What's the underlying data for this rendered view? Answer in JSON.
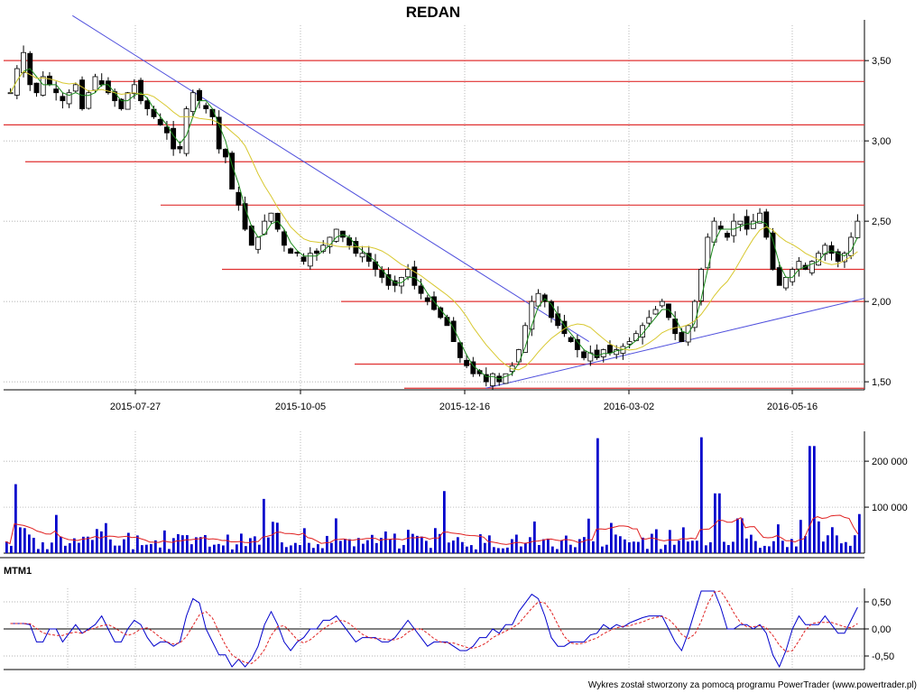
{
  "title": "REDAN",
  "footer": "Wykres został stworzony za pomocą programu PowerTrader (www.powertrader.pl)",
  "chart_data": [
    {
      "type": "candlestick",
      "panel": "price",
      "title": "REDAN",
      "x_tick_labels": [
        "2015-07-27",
        "2015-10-05",
        "2015-12-16",
        "2016-03-02",
        "2016-05-16"
      ],
      "y_tick_labels": [
        "3,50",
        "3,00",
        "2,50",
        "2,00",
        "1,50"
      ],
      "y_ticks": [
        3.5,
        3.0,
        2.5,
        2.0,
        1.5
      ],
      "ylim": [
        1.45,
        3.72
      ],
      "grid": true,
      "close_series": [
        3.3,
        3.45,
        3.55,
        3.35,
        3.3,
        3.4,
        3.35,
        3.3,
        3.25,
        3.3,
        3.35,
        3.2,
        3.3,
        3.4,
        3.35,
        3.3,
        3.25,
        3.2,
        3.3,
        3.35,
        3.25,
        3.2,
        3.15,
        3.1,
        3.05,
        2.95,
        2.95,
        3.2,
        3.3,
        3.25,
        3.2,
        3.15,
        2.95,
        2.9,
        2.7,
        2.6,
        2.45,
        2.35,
        2.4,
        2.5,
        2.55,
        2.45,
        2.35,
        2.3,
        2.3,
        2.25,
        2.3,
        2.3,
        2.35,
        2.4,
        2.45,
        2.4,
        2.35,
        2.3,
        2.3,
        2.25,
        2.2,
        2.15,
        2.1,
        2.1,
        2.15,
        2.2,
        2.1,
        2.05,
        2.0,
        1.95,
        1.9,
        1.85,
        1.75,
        1.65,
        1.6,
        1.55,
        1.55,
        1.5,
        1.55,
        1.5,
        1.55,
        1.6,
        1.7,
        1.85,
        2.0,
        2.05,
        2.0,
        1.9,
        1.85,
        1.8,
        1.75,
        1.7,
        1.65,
        1.68,
        1.65,
        1.7,
        1.68,
        1.7,
        1.72,
        1.75,
        1.8,
        1.85,
        1.9,
        1.95,
        2.0,
        1.9,
        1.8,
        1.75,
        1.85,
        2.0,
        2.2,
        2.4,
        2.5,
        2.45,
        2.4,
        2.5,
        2.5,
        2.45,
        2.5,
        2.55,
        2.4,
        2.2,
        2.1,
        2.15,
        2.2,
        2.25,
        2.2,
        2.25,
        2.3,
        2.35,
        2.3,
        2.25,
        2.3,
        2.4,
        2.5
      ],
      "moving_averages": [
        {
          "color": "#1a8a1a",
          "period": "short"
        },
        {
          "color": "#d8c830",
          "period": "long"
        }
      ],
      "horizontal_levels": [
        3.5,
        3.37,
        3.1,
        2.87,
        2.6,
        2.2,
        2.0,
        1.61,
        1.46
      ],
      "trend_lines": [
        {
          "from": [
            0.08,
            3.78
          ],
          "to": [
            0.68,
            1.75
          ]
        },
        {
          "from": [
            0.56,
            1.46
          ],
          "to": [
            1.0,
            2.02
          ]
        }
      ],
      "candle_colors": {
        "up": "#ffffff",
        "down": "#000000",
        "outline": "#000000"
      },
      "level_color": "#e03030",
      "trend_color": "#5050dd"
    },
    {
      "type": "bar",
      "panel": "volume",
      "y_tick_labels": [
        "200 000",
        "100 000"
      ],
      "y_ticks": [
        200000,
        100000
      ],
      "ylim": [
        0,
        265000
      ],
      "bar_color": "#0000cc",
      "average_color": "#e02020",
      "spikes": [
        {
          "x": 0.01,
          "value": 150000
        },
        {
          "x": 0.3,
          "value": 118000
        },
        {
          "x": 0.51,
          "value": 135000
        },
        {
          "x": 0.69,
          "value": 250000
        },
        {
          "x": 0.81,
          "value": 252000
        },
        {
          "x": 0.83,
          "value": 130000
        },
        {
          "x": 0.94,
          "value": 233000
        },
        {
          "x": 0.995,
          "value": 85000
        }
      ]
    },
    {
      "type": "line",
      "panel": "oscillator",
      "title": "MTM1",
      "y_tick_labels": [
        "0,50",
        "0,00",
        "-0,50"
      ],
      "y_ticks": [
        0.5,
        0.0,
        -0.5
      ],
      "ylim": [
        -0.75,
        0.75
      ],
      "series": [
        {
          "name": "",
          "color": "#0000cc"
        },
        {
          "name": "",
          "color": "#e02020",
          "style": "dashed"
        }
      ]
    }
  ]
}
